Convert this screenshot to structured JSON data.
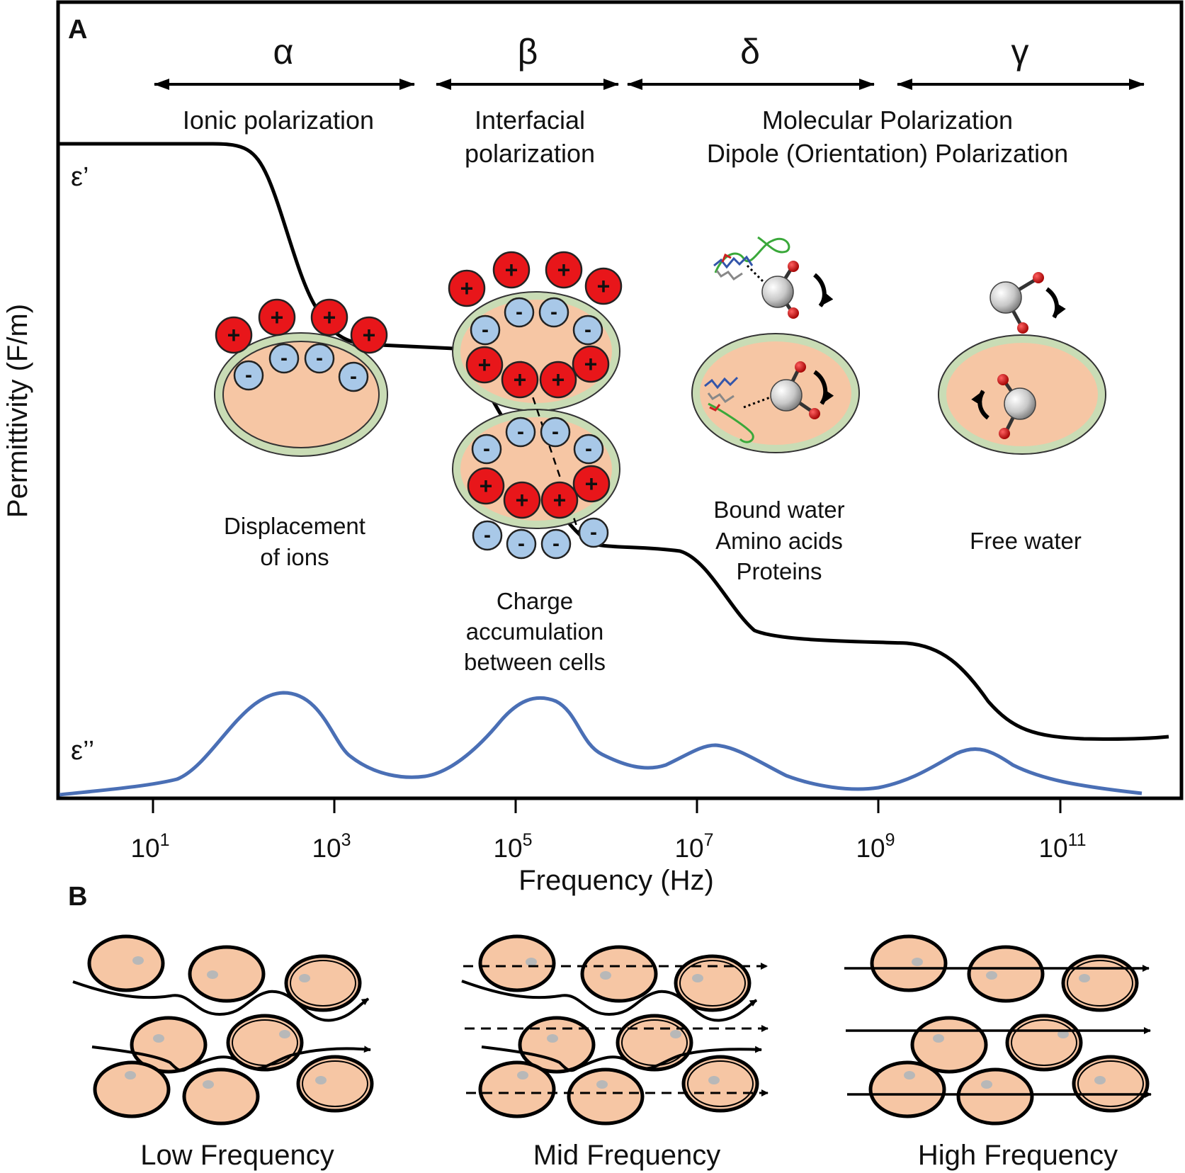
{
  "panel_a": {
    "letter": "A",
    "y_axis_title": "Permittivity (F/m)",
    "x_axis_title": "Frequency (Hz)",
    "x_ticks": [
      {
        "base": "10",
        "exp": "1"
      },
      {
        "base": "10",
        "exp": "3"
      },
      {
        "base": "10",
        "exp": "5"
      },
      {
        "base": "10",
        "exp": "7"
      },
      {
        "base": "10",
        "exp": "9"
      },
      {
        "base": "10",
        "exp": "11"
      }
    ],
    "x_scale": "log",
    "curve_labels": {
      "real": "ε’",
      "imag": "ε’’"
    },
    "dispersions": [
      {
        "symbol": "α",
        "label_lines": [
          "Ionic polarization"
        ]
      },
      {
        "symbol": "β",
        "label_lines": [
          "Interfacial",
          "polarization"
        ]
      },
      {
        "symbol": "δ",
        "label_lines": []
      },
      {
        "symbol": "γ",
        "label_lines": []
      }
    ],
    "shared_label_lines": [
      "Molecular Polarization",
      "Dipole (Orientation) Polarization"
    ],
    "mechanisms": [
      {
        "id": "alpha",
        "caption_lines": [
          "Displacement",
          "of ions"
        ]
      },
      {
        "id": "beta",
        "caption_lines": [
          "Charge",
          "accumulation",
          "between cells"
        ]
      },
      {
        "id": "delta",
        "caption_lines": [
          "Bound water",
          "Amino acids",
          "Proteins"
        ]
      },
      {
        "id": "gamma",
        "caption_lines": [
          "Free water"
        ]
      }
    ],
    "charge_symbols": {
      "positive": "+",
      "negative": "-"
    },
    "colors": {
      "cell_fill": "#f6c6a4",
      "cell_membrane": "#c9dcb5",
      "positive_ion": "#e8161a",
      "negative_ion": "#a8c8e8",
      "real_curve": "#000000",
      "imag_curve": "#4a6fb5"
    }
  },
  "panel_b": {
    "letter": "B",
    "captions": [
      "Low Frequency",
      "Mid Frequency",
      "High Frequency"
    ],
    "colors": {
      "cell_fill": "#f6c6a4",
      "nucleus": "#b8b8b8"
    }
  }
}
